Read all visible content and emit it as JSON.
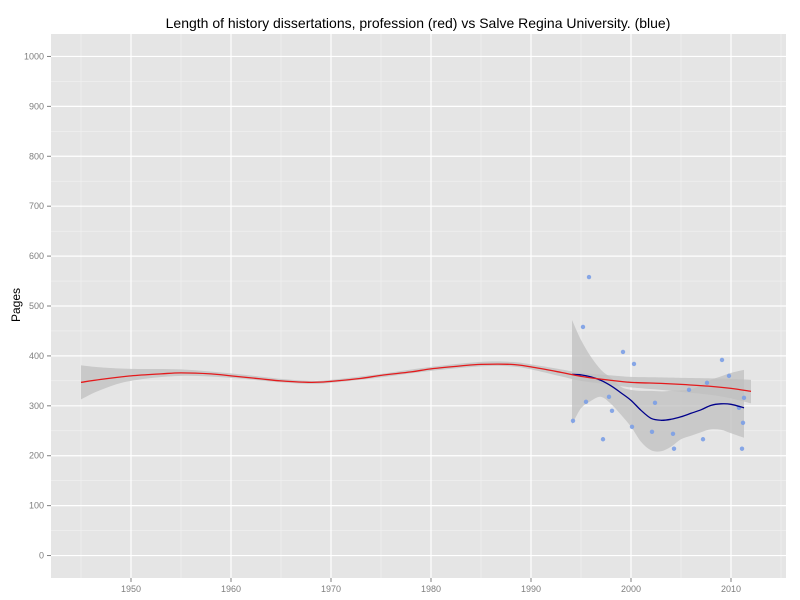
{
  "chart_data": {
    "type": "scatter",
    "title": "Length of history dissertations, profession (red) vs Salve Regina University. (blue)",
    "xlabel": "",
    "ylabel": "Pages",
    "xlim": [
      1942.0,
      2015.5
    ],
    "ylim": [
      -45,
      1045
    ],
    "x_ticks": [
      1950,
      1960,
      1970,
      1980,
      1990,
      2000,
      2010
    ],
    "y_ticks": [
      0,
      100,
      200,
      300,
      400,
      500,
      600,
      700,
      800,
      900,
      1000
    ],
    "grid": true,
    "legend": "none",
    "colors": {
      "panel": "#e5e5e5",
      "grid_major": "#ffffff",
      "grid_minor": "#f2f2f2",
      "ribbon": "#bfbfbf",
      "profession_line": "#e41a1c",
      "salve_line": "#00008b",
      "salve_points": "#7b9fe6"
    },
    "series": [
      {
        "kind": "points",
        "color_key": "salve_points",
        "x": [
          1994.2,
          1995.2,
          1995.5,
          1995.8,
          1997.2,
          1997.8,
          1998.1,
          1999.2,
          2000.1,
          2000.3,
          2002.1,
          2002.4,
          2004.2,
          2004.3,
          2005.8,
          2007.2,
          2007.6,
          2009.1,
          2009.8,
          2010.8,
          2011.1,
          2011.2,
          2011.3
        ],
        "y": [
          270,
          458,
          308,
          558,
          233,
          318,
          290,
          408,
          258,
          384,
          248,
          306,
          244,
          214,
          332,
          233,
          346,
          392,
          360,
          296,
          214,
          266,
          316
        ]
      },
      {
        "kind": "ribbon",
        "color_key": "ribbon",
        "x": [
          1945,
          1947,
          1950,
          1955,
          1960,
          1965,
          1968,
          1970,
          1975,
          1980,
          1985,
          1988,
          1990,
          1993,
          1995,
          1998,
          2000,
          2003,
          2005,
          2008,
          2010,
          2012
        ],
        "lower": [
          313,
          332,
          350,
          360,
          356,
          347,
          344,
          346,
          357,
          370,
          379,
          379,
          373,
          359,
          350,
          342,
          337,
          332,
          328,
          322,
          315,
          305
        ],
        "upper": [
          381,
          377,
          374,
          373,
          365,
          354,
          350,
          352,
          364,
          378,
          388,
          388,
          383,
          373,
          366,
          361,
          358,
          357,
          356,
          355,
          354,
          352
        ]
      },
      {
        "kind": "ribbon",
        "color_key": "ribbon",
        "x": [
          1994.1,
          1995,
          1996,
          1997,
          1998,
          1999,
          2000,
          2001,
          2002,
          2003,
          2004,
          2005,
          2006,
          2007,
          2008,
          2009,
          2010,
          2011.3
        ],
        "lower": [
          262,
          295,
          310,
          318,
          304,
          282,
          258,
          228,
          211,
          209,
          218,
          233,
          240,
          247,
          253,
          252,
          245,
          236
        ],
        "upper": [
          472,
          432,
          398,
          372,
          356,
          338,
          332,
          330,
          330,
          329,
          330,
          331,
          333,
          341,
          352,
          359,
          366,
          372
        ]
      },
      {
        "kind": "line",
        "color_key": "salve_line",
        "x": [
          1994.1,
          1995,
          1996,
          1997,
          1998,
          1999,
          2000,
          2001,
          2002,
          2003,
          2004,
          2005,
          2006,
          2007,
          2008,
          2009,
          2010,
          2011.3
        ],
        "y": [
          363,
          362,
          358,
          351,
          340,
          326,
          311,
          291,
          275,
          271,
          273,
          278,
          285,
          292,
          301,
          304,
          303,
          296
        ]
      },
      {
        "kind": "line",
        "color_key": "profession_line",
        "x": [
          1945,
          1947,
          1950,
          1953,
          1955,
          1958,
          1960,
          1963,
          1965,
          1968,
          1970,
          1973,
          1975,
          1978,
          1980,
          1983,
          1985,
          1988,
          1990,
          1993,
          1995,
          1998,
          2000,
          2003,
          2005,
          2008,
          2010,
          2012
        ],
        "y": [
          347,
          353,
          360,
          364,
          366,
          364,
          360,
          354,
          350,
          347,
          349,
          355,
          361,
          368,
          374,
          380,
          383,
          383,
          378,
          367,
          359,
          351,
          347,
          345,
          343,
          339,
          335,
          329
        ]
      }
    ]
  }
}
